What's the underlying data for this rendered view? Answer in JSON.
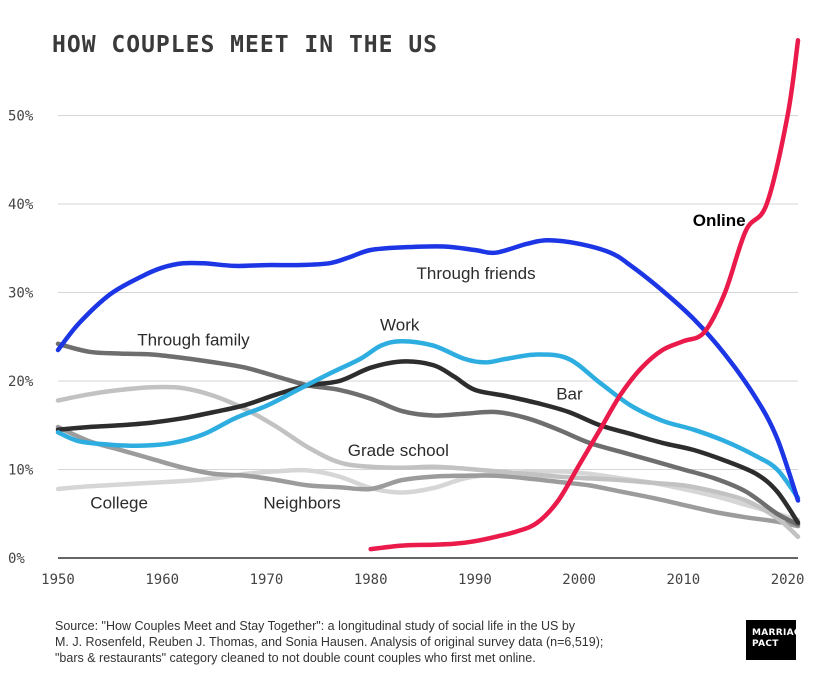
{
  "chart_data": {
    "type": "line",
    "title": "HOW COUPLES MEET IN THE US",
    "xlim": [
      1950,
      2021
    ],
    "ylim": [
      0,
      58
    ],
    "x_ticks": [
      1950,
      1960,
      1970,
      1980,
      1990,
      2000,
      2010,
      2020
    ],
    "x_tick_labels": [
      "1950",
      "1960",
      "1970",
      "1980",
      "1990",
      "2000",
      "2010",
      "2020"
    ],
    "y_ticks": [
      0,
      10,
      20,
      30,
      40,
      50
    ],
    "y_tick_labels": [
      "0%",
      "10%",
      "20%",
      "30%",
      "40%",
      "50%"
    ],
    "grid": true,
    "series": [
      {
        "name": "Through friends",
        "color": "#1c36e6",
        "x": [
          1950,
          1952,
          1955,
          1958,
          1960,
          1962,
          1964,
          1967,
          1970,
          1973,
          1976,
          1978,
          1980,
          1983,
          1987,
          1990,
          1992,
          1995,
          1997,
          2000,
          2003,
          2005,
          2008,
          2011,
          2014,
          2017,
          2019,
          2021
        ],
        "y": [
          23.5,
          26.5,
          29.8,
          31.8,
          32.8,
          33.3,
          33.3,
          33.0,
          33.1,
          33.1,
          33.3,
          34.0,
          34.8,
          35.1,
          35.2,
          34.8,
          34.5,
          35.5,
          35.9,
          35.5,
          34.5,
          33.0,
          30.2,
          27.0,
          23.0,
          18.0,
          13.5,
          6.5
        ]
      },
      {
        "name": "Online",
        "color": "#ea1a4b",
        "x": [
          1980,
          1983,
          1986,
          1988,
          1990,
          1992,
          1994,
          1996,
          1998,
          2000,
          2002,
          2004,
          2006,
          2008,
          2010,
          2012,
          2014,
          2016,
          2018,
          2020,
          2021
        ],
        "y": [
          1.0,
          1.4,
          1.5,
          1.6,
          1.9,
          2.4,
          3.0,
          4.0,
          6.5,
          10.5,
          14.5,
          18.5,
          21.5,
          23.5,
          24.5,
          25.5,
          30.0,
          37.0,
          40.0,
          50.0,
          58.5
        ]
      },
      {
        "name": "Work",
        "color": "#2eaee0",
        "x": [
          1950,
          1952,
          1955,
          1958,
          1961,
          1964,
          1967,
          1970,
          1973,
          1976,
          1979,
          1981,
          1983,
          1986,
          1989,
          1991,
          1993,
          1996,
          1999,
          2002,
          2005,
          2008,
          2011,
          2014,
          2017,
          2019,
          2021
        ],
        "y": [
          14.2,
          13.2,
          12.8,
          12.7,
          13.0,
          14.0,
          15.8,
          17.2,
          19.0,
          20.8,
          22.5,
          24.0,
          24.5,
          24.0,
          22.5,
          22.1,
          22.5,
          23.0,
          22.5,
          19.8,
          17.2,
          15.5,
          14.5,
          13.2,
          11.5,
          10.0,
          6.8
        ]
      },
      {
        "name": "Bar",
        "color": "#2d2d2d",
        "x": [
          1950,
          1953,
          1956,
          1959,
          1962,
          1965,
          1968,
          1971,
          1974,
          1977,
          1980,
          1983,
          1986,
          1988,
          1990,
          1993,
          1996,
          1999,
          2002,
          2005,
          2008,
          2011,
          2014,
          2017,
          2019,
          2021
        ],
        "y": [
          14.5,
          14.8,
          15.0,
          15.3,
          15.8,
          16.5,
          17.3,
          18.5,
          19.5,
          20.0,
          21.5,
          22.2,
          21.8,
          20.5,
          19.0,
          18.3,
          17.5,
          16.5,
          15.0,
          14.0,
          13.0,
          12.2,
          11.0,
          9.5,
          7.5,
          4.0
        ]
      },
      {
        "name": "Through family",
        "color": "#6e6e6e",
        "x": [
          1950,
          1953,
          1956,
          1959,
          1962,
          1965,
          1968,
          1971,
          1974,
          1977,
          1980,
          1983,
          1986,
          1989,
          1992,
          1995,
          1998,
          2001,
          2004,
          2007,
          2010,
          2013,
          2016,
          2019,
          2021
        ],
        "y": [
          24.2,
          23.3,
          23.1,
          23.0,
          22.6,
          22.1,
          21.5,
          20.5,
          19.5,
          19.0,
          18.0,
          16.6,
          16.1,
          16.3,
          16.5,
          15.8,
          14.5,
          13.0,
          12.0,
          11.0,
          10.0,
          9.0,
          7.5,
          5.0,
          3.8
        ]
      },
      {
        "name": "Grade school",
        "color": "#c2c2c2",
        "x": [
          1950,
          1953,
          1956,
          1959,
          1962,
          1965,
          1968,
          1971,
          1974,
          1977,
          1980,
          1983,
          1986,
          1989,
          1992,
          1995,
          1998,
          2001,
          2004,
          2007,
          2010,
          2013,
          2016,
          2019,
          2021
        ],
        "y": [
          17.8,
          18.5,
          19.0,
          19.3,
          19.2,
          18.3,
          16.8,
          14.8,
          12.5,
          10.8,
          10.3,
          10.2,
          10.3,
          10.1,
          9.8,
          9.5,
          9.2,
          9.0,
          8.8,
          8.5,
          8.2,
          7.5,
          6.5,
          4.5,
          2.4
        ]
      },
      {
        "name": "Neighbors",
        "color": "#9c9c9c",
        "x": [
          1950,
          1953,
          1956,
          1959,
          1962,
          1965,
          1968,
          1971,
          1974,
          1977,
          1980,
          1983,
          1986,
          1989,
          1992,
          1995,
          1998,
          2001,
          2004,
          2007,
          2010,
          2013,
          2016,
          2019,
          2021
        ],
        "y": [
          14.8,
          13.2,
          12.2,
          11.2,
          10.2,
          9.5,
          9.3,
          8.8,
          8.2,
          8.0,
          7.8,
          8.8,
          9.2,
          9.3,
          9.3,
          9.0,
          8.6,
          8.2,
          7.5,
          6.8,
          6.0,
          5.2,
          4.6,
          4.1,
          3.6
        ]
      },
      {
        "name": "College",
        "color": "#d6d6d6",
        "x": [
          1950,
          1953,
          1956,
          1959,
          1962,
          1965,
          1968,
          1971,
          1974,
          1977,
          1980,
          1983,
          1986,
          1989,
          1992,
          1995,
          1998,
          2001,
          2004,
          2007,
          2010,
          2013,
          2016,
          2019,
          2021
        ],
        "y": [
          7.8,
          8.1,
          8.3,
          8.5,
          8.7,
          9.0,
          9.5,
          9.8,
          9.9,
          9.2,
          7.9,
          7.4,
          7.9,
          9.0,
          9.5,
          9.7,
          9.8,
          9.5,
          9.0,
          8.5,
          7.8,
          7.0,
          6.0,
          5.0,
          4.3
        ]
      }
    ],
    "labels": [
      {
        "text": "Through friends",
        "series": "Through friends",
        "x": 1984.4,
        "y": 31.5,
        "bold": false
      },
      {
        "text": "Online",
        "series": "Online",
        "x": 2010.9,
        "y": 37.5,
        "bold": true
      },
      {
        "text": "Work",
        "series": "Work",
        "x": 1980.9,
        "y": 25.7,
        "bold": false
      },
      {
        "text": "Bar",
        "series": "Bar",
        "x": 1997.8,
        "y": 17.9,
        "bold": false
      },
      {
        "text": "Through family",
        "series": "Through family",
        "x": 1957.6,
        "y": 24.0,
        "bold": false
      },
      {
        "text": "Grade school",
        "series": "Grade school",
        "x": 1977.8,
        "y": 11.5,
        "bold": false
      },
      {
        "text": "Neighbors",
        "series": "Neighbors",
        "x": 1969.7,
        "y": 5.6,
        "bold": false
      },
      {
        "text": "College",
        "series": "College",
        "x": 1953.1,
        "y": 5.6,
        "bold": false
      }
    ]
  },
  "source": {
    "lines": [
      "Source: \"How Couples Meet and Stay Together\": a longitudinal study of social life in the US by",
      "M. J. Rosenfeld, Reuben J. Thomas, and Sonia Hausen. Analysis of original survey data (n=6,519);",
      "\"bars & restaurants\" category cleaned to not double count couples who first met online."
    ]
  },
  "logo": {
    "line1": "MARRIAGE",
    "line2": "PACT"
  }
}
